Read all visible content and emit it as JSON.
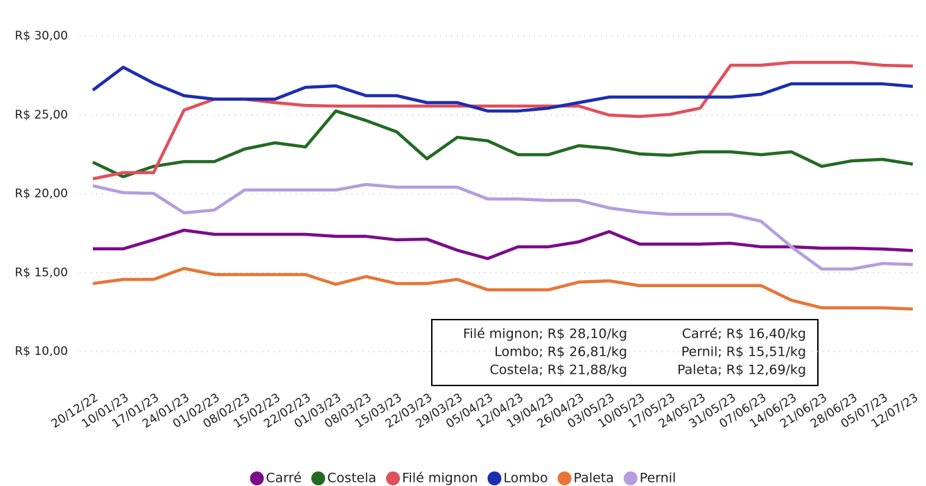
{
  "chart_data": {
    "type": "line",
    "categories": [
      "20/12/22",
      "10/01/23",
      "17/01/23",
      "24/01/23",
      "01/02/23",
      "08/02/23",
      "15/02/23",
      "22/02/23",
      "01/03/23",
      "08/03/23",
      "15/03/23",
      "22/03/23",
      "29/03/23",
      "05/04/23",
      "12/04/23",
      "19/04/23",
      "26/04/23",
      "03/05/23",
      "10/05/23",
      "17/05/23",
      "24/05/23",
      "31/05/23",
      "07/06/23",
      "14/06/23",
      "21/06/23",
      "28/06/23",
      "05/07/23",
      "12/07/23"
    ],
    "series": [
      {
        "name": "Carré",
        "color": "#7b0b8a",
        "values": [
          16.51,
          16.51,
          17.08,
          17.69,
          17.43,
          17.43,
          17.43,
          17.43,
          17.3,
          17.3,
          17.08,
          17.12,
          16.42,
          15.89,
          16.64,
          16.64,
          16.95,
          17.6,
          16.81,
          16.81,
          16.81,
          16.86,
          16.64,
          16.64,
          16.55,
          16.55,
          16.5,
          16.4
        ]
      },
      {
        "name": "Costela",
        "color": "#226a23",
        "values": [
          22.0,
          21.08,
          21.74,
          22.04,
          22.04,
          22.84,
          23.23,
          22.97,
          25.25,
          24.64,
          23.93,
          22.22,
          23.58,
          23.36,
          22.48,
          22.48,
          23.05,
          22.88,
          22.53,
          22.44,
          22.66,
          22.66,
          22.48,
          22.66,
          21.74,
          22.09,
          22.18,
          21.88
        ]
      },
      {
        "name": "Filé mignon",
        "color": "#e0505c",
        "values": [
          20.95,
          21.34,
          21.34,
          25.3,
          26.0,
          26.0,
          25.78,
          25.6,
          25.56,
          25.56,
          25.56,
          25.56,
          25.56,
          25.56,
          25.56,
          25.56,
          25.56,
          24.99,
          24.9,
          25.03,
          25.43,
          28.15,
          28.15,
          28.33,
          28.33,
          28.33,
          28.15,
          28.1
        ]
      },
      {
        "name": "Lombo",
        "color": "#1b2db0",
        "values": [
          26.57,
          28.02,
          27.01,
          26.22,
          26.0,
          26.0,
          26.0,
          26.75,
          26.84,
          26.22,
          26.22,
          25.78,
          25.78,
          25.25,
          25.25,
          25.43,
          25.78,
          26.13,
          26.13,
          26.13,
          26.13,
          26.13,
          26.31,
          26.97,
          26.97,
          26.97,
          26.97,
          26.81
        ]
      },
      {
        "name": "Paleta",
        "color": "#e87537",
        "values": [
          14.31,
          14.57,
          14.57,
          15.27,
          14.88,
          14.88,
          14.88,
          14.88,
          14.26,
          14.75,
          14.31,
          14.31,
          14.57,
          13.91,
          13.91,
          13.91,
          14.4,
          14.48,
          14.18,
          14.18,
          14.18,
          14.18,
          14.18,
          13.25,
          12.77,
          12.77,
          12.77,
          12.69
        ]
      },
      {
        "name": "Pernil",
        "color": "#b39ddf",
        "values": [
          20.51,
          20.07,
          20.02,
          18.79,
          18.97,
          20.24,
          20.24,
          20.24,
          20.24,
          20.59,
          20.42,
          20.42,
          20.42,
          19.67,
          19.67,
          19.58,
          19.58,
          19.1,
          18.84,
          18.7,
          18.7,
          18.7,
          18.26,
          16.64,
          15.23,
          15.23,
          15.58,
          15.51
        ]
      }
    ],
    "ylim": [
      10,
      30
    ],
    "yticks": [
      {
        "value": 10,
        "label": "R$ 10,00"
      },
      {
        "value": 15,
        "label": "R$ 15,00"
      },
      {
        "value": 20,
        "label": "R$ 20,00"
      },
      {
        "value": 25,
        "label": "R$ 25,00"
      },
      {
        "value": 30,
        "label": "R$ 30,00"
      }
    ],
    "grid": true,
    "legend": "bottom",
    "annotations": [
      "Filé mignon; R$ 28,10/kg",
      "Lombo; R$ 26,81/kg",
      "Costela; R$ 21,88/kg",
      "Carré; R$ 16,40/kg",
      "Pernil; R$ 15,51/kg",
      "Paleta; R$ 12,69/kg"
    ]
  }
}
